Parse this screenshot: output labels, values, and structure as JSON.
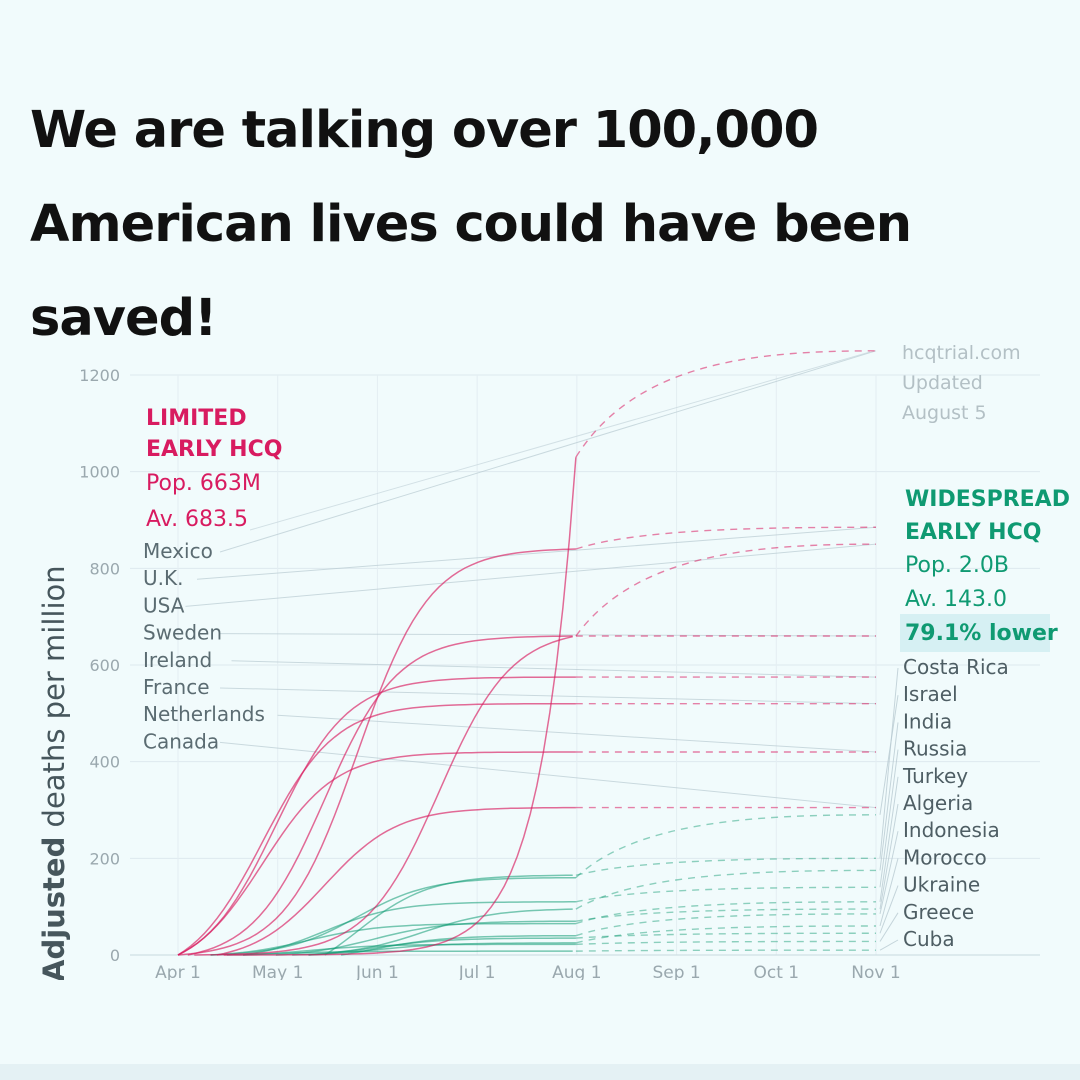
{
  "headline": {
    "line1": "We are talking over 100,000",
    "line2": "American lives could have been",
    "line3": "saved!"
  },
  "chart_data": {
    "type": "line",
    "ylabel_bold": "Adjusted",
    "ylabel_rest": " deaths per million",
    "ylim": [
      0,
      1200
    ],
    "yticks": [
      0,
      200,
      400,
      600,
      800,
      1000,
      1200
    ],
    "xticks": [
      "Apr 1",
      "May 1",
      "Jun 1",
      "Jul 1",
      "Aug 1",
      "Sep 1",
      "Oct 1",
      "Nov 1"
    ],
    "source": [
      "hcqtrial.com",
      "Updated",
      "August 5"
    ],
    "limited": {
      "heading": [
        "LIMITED",
        "EARLY HCQ"
      ],
      "pop": "Pop. 663M",
      "avg": "Av. 683.5",
      "color": "#d81b60",
      "countries": [
        "Mexico",
        "U.K.",
        "USA",
        "Sweden",
        "Ireland",
        "France",
        "Netherlands",
        "Canada"
      ]
    },
    "widespread": {
      "heading": [
        "WIDESPREAD",
        "EARLY HCQ"
      ],
      "pop": "Pop. 2.0B",
      "avg": "Av. 143.0",
      "lower": "79.1% lower",
      "color": "#0f9a72",
      "countries": [
        "Costa Rica",
        "Israel",
        "India",
        "Russia",
        "Turkey",
        "Algeria",
        "Indonesia",
        "Morocco",
        "Ukraine",
        "Greece",
        "Cuba"
      ]
    },
    "series_limited": [
      {
        "label": "Mexico",
        "start": 14,
        "growth": 240,
        "aug": 1030,
        "nov": 1250
      },
      {
        "label": "U.K.",
        "start": 0,
        "growth": 55,
        "aug": 840,
        "nov": 885
      },
      {
        "label": "USA",
        "start": 5,
        "growth": 80,
        "aug": 660,
        "nov": 850
      },
      {
        "label": "Sweden",
        "start": 3,
        "growth": 45,
        "aug": 660,
        "nov": 660
      },
      {
        "label": "Ireland",
        "start": 0,
        "growth": 30,
        "aug": 575,
        "nov": 575
      },
      {
        "label": "France",
        "start": 0,
        "growth": 26,
        "aug": 520,
        "nov": 520
      },
      {
        "label": "Netherlands",
        "start": 0,
        "growth": 26,
        "aug": 420,
        "nov": 420
      },
      {
        "label": "Canada",
        "start": 12,
        "growth": 45,
        "aug": 305,
        "nov": 305
      }
    ],
    "series_widespread": [
      {
        "label": "Costa Rica",
        "start": 45,
        "growth": 55,
        "aug": 165,
        "nov": 200
      },
      {
        "label": "Israel",
        "start": 10,
        "growth": 55,
        "aug": 160,
        "nov": 290
      },
      {
        "label": "India",
        "start": 35,
        "growth": 75,
        "aug": 95,
        "nov": 175
      },
      {
        "label": "Russia",
        "start": 20,
        "growth": 45,
        "aug": 110,
        "nov": 140
      },
      {
        "label": "Turkey",
        "start": 10,
        "growth": 40,
        "aug": 65,
        "nov": 110
      },
      {
        "label": "Algeria",
        "start": 30,
        "growth": 60,
        "aug": 70,
        "nov": 95
      },
      {
        "label": "Indonesia",
        "start": 50,
        "growth": 60,
        "aug": 40,
        "nov": 85
      },
      {
        "label": "Morocco",
        "start": 40,
        "growth": 60,
        "aug": 25,
        "nov": 60
      },
      {
        "label": "Ukraine",
        "start": 40,
        "growth": 60,
        "aug": 35,
        "nov": 45
      },
      {
        "label": "Greece",
        "start": 20,
        "growth": 40,
        "aug": 22,
        "nov": 28
      },
      {
        "label": "Cuba",
        "start": 15,
        "growth": 30,
        "aug": 8,
        "nov": 10
      }
    ]
  }
}
